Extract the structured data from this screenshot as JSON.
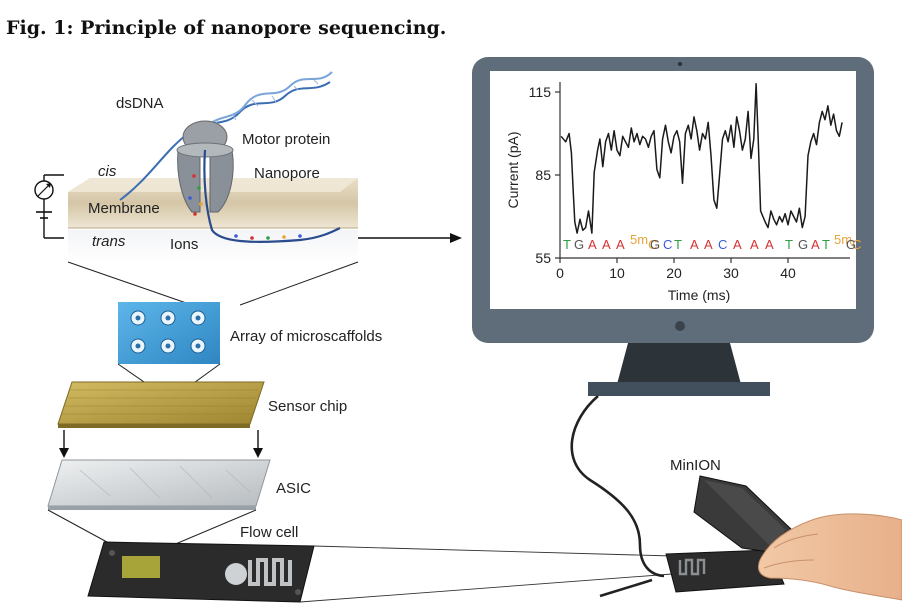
{
  "figure": {
    "title": "Fig. 1: Principle of nanopore sequencing."
  },
  "labels": {
    "dsdna": "dsDNA",
    "motor_protein": "Motor protein",
    "cis": "cis",
    "nanopore": "Nanopore",
    "membrane": "Membrane",
    "trans": "trans",
    "ions": "Ions",
    "array": "Array of microscaffolds",
    "sensor_chip": "Sensor chip",
    "asic": "ASIC",
    "flow_cell": "Flow cell",
    "minion": "MinION"
  },
  "colors": {
    "screen_frame": "#5d6b78",
    "membrane": "#d8cbb0",
    "protein": "#8a9097",
    "dna_blue": "#3b6db3",
    "array_blue": "#4aa3db",
    "sensor_gold": "#b79d3c",
    "asic_silver": "#cfd3d6",
    "flow_cell": "#2b2b2b",
    "base_T": "#2f9e44",
    "base_G": "#555555",
    "base_A": "#d63031",
    "base_C": "#3b5bdb",
    "base_5mC": "#e8a33a"
  },
  "chart_data": {
    "type": "line",
    "xlabel": "Time (ms)",
    "ylabel": "Current (pA)",
    "xlim": [
      0,
      50
    ],
    "ylim": [
      55,
      115
    ],
    "xticks": [
      "0",
      "10",
      "20",
      "30",
      "40"
    ],
    "yticks": [
      "55",
      "85",
      "115"
    ],
    "series": [
      {
        "x": [
          0.2,
          1.0,
          1.6,
          2.0,
          2.3,
          2.6,
          3.0,
          3.5,
          4.0,
          4.5,
          5.0,
          5.6,
          6.0,
          6.3,
          6.6,
          7.0,
          7.5,
          8.0,
          8.5,
          9.0,
          9.5,
          10.0,
          10.5,
          11.0,
          11.5,
          12.0,
          12.5,
          13.0,
          13.5,
          14.0,
          14.5,
          15.0,
          15.5,
          16.0,
          16.5,
          17.0,
          17.5,
          18.0,
          18.5,
          19.0,
          19.5,
          20.0,
          20.5,
          21.0,
          21.5,
          22.0,
          22.5,
          23.0,
          23.5,
          24.0,
          24.5,
          25.0,
          25.5,
          26.0,
          26.5,
          27.0,
          27.5,
          28.0,
          28.5,
          29.0,
          29.5,
          30.0,
          30.5,
          31.0,
          31.5,
          32.0,
          32.5,
          33.0,
          33.5,
          34.0,
          34.4,
          34.8,
          35.2,
          35.6,
          36.0,
          36.5,
          37.0,
          37.5,
          38.0,
          38.5,
          39.0,
          39.5,
          40.0,
          40.5,
          41.0,
          41.5,
          42.0,
          42.5,
          43.0,
          43.5,
          44.0,
          44.5,
          45.0,
          45.5,
          46.0,
          46.5,
          47.0,
          47.5,
          48.0,
          48.5,
          49.0,
          49.5
        ],
        "y": [
          99,
          97,
          100,
          93,
          80,
          68,
          64,
          69,
          65,
          66,
          72,
          64,
          86,
          90,
          94,
          98,
          88,
          97,
          100,
          94,
          101,
          94,
          92,
          99,
          97,
          95,
          102,
          97,
          100,
          96,
          99,
          98,
          95,
          99,
          101,
          87,
          84,
          98,
          103,
          97,
          93,
          99,
          101,
          97,
          82,
          100,
          103,
          98,
          106,
          101,
          94,
          100,
          98,
          104,
          92,
          76,
          73,
          85,
          98,
          101,
          97,
          103,
          95,
          106,
          101,
          94,
          98,
          108,
          91,
          98,
          118,
          96,
          72,
          70,
          68,
          66,
          72,
          69,
          67,
          70,
          68,
          71,
          67,
          72,
          70,
          68,
          73,
          66,
          70,
          92,
          97,
          100,
          96,
          104,
          108,
          105,
          110,
          103,
          107,
          101,
          99,
          104
        ]
      }
    ],
    "bases": [
      "T",
      "G",
      "A",
      "A",
      "A",
      "5mC",
      "G",
      "C",
      "T",
      "A",
      "A",
      "C",
      "A",
      "A",
      "A",
      "T",
      "G",
      "A",
      "T",
      "5mC",
      "G"
    ]
  }
}
